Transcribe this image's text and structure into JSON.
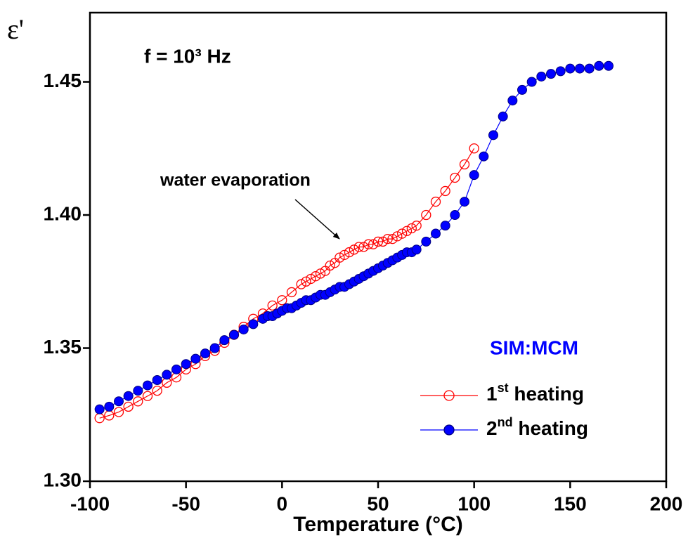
{
  "chart_data": {
    "type": "line",
    "ylabel": "ε'",
    "xlabel": "Temperature (°C)",
    "annotations": [
      "f = 10³ Hz",
      "water evaporation"
    ],
    "legend_title": "SIM:MCM",
    "xlim": [
      -100,
      200
    ],
    "xticks": [
      -100,
      -50,
      0,
      50,
      100,
      150,
      200
    ],
    "ylim": [
      1.3,
      1.476
    ],
    "yticks": [
      {
        "value": 1.3,
        "label": "1.30"
      },
      1.35,
      {
        "value": 1.4,
        "label": "1.40"
      },
      1.45
    ],
    "series": [
      {
        "name": "1st heating",
        "color": "#ff0000",
        "filled": false,
        "x": [
          -95,
          -90,
          -85,
          -80,
          -75,
          -70,
          -65,
          -60,
          -55,
          -50,
          -45,
          -40,
          -35,
          -30,
          -25,
          -20,
          -15,
          -10,
          -5,
          0,
          5,
          10,
          12.5,
          15,
          17.5,
          20,
          22.5,
          25,
          27.5,
          30,
          32.5,
          35,
          37.5,
          40,
          42.5,
          45,
          47.5,
          50,
          52.5,
          55,
          57.5,
          60,
          62.5,
          65,
          67.5,
          70,
          75,
          80,
          85,
          90,
          95,
          100
        ],
        "values": [
          1.3237,
          1.3247,
          1.326,
          1.328,
          1.33,
          1.332,
          1.334,
          1.337,
          1.339,
          1.342,
          1.344,
          1.347,
          1.349,
          1.352,
          1.355,
          1.358,
          1.361,
          1.363,
          1.366,
          1.368,
          1.371,
          1.374,
          1.375,
          1.376,
          1.377,
          1.378,
          1.379,
          1.381,
          1.382,
          1.384,
          1.385,
          1.386,
          1.387,
          1.388,
          1.388,
          1.389,
          1.389,
          1.39,
          1.39,
          1.391,
          1.391,
          1.392,
          1.393,
          1.394,
          1.395,
          1.396,
          1.4,
          1.405,
          1.409,
          1.414,
          1.419,
          1.425
        ]
      },
      {
        "name": "2nd heating",
        "color": "#0000ff",
        "filled": true,
        "x": [
          -95,
          -90,
          -85,
          -80,
          -75,
          -70,
          -65,
          -60,
          -55,
          -50,
          -45,
          -40,
          -35,
          -30,
          -25,
          -20,
          -15,
          -10,
          -7.5,
          -5,
          -2.5,
          0,
          2.5,
          5,
          7.5,
          10,
          12.5,
          15,
          17.5,
          20,
          22.5,
          25,
          27.5,
          30,
          32.5,
          35,
          37.5,
          40,
          42.5,
          45,
          47.5,
          50,
          52.5,
          55,
          57.5,
          60,
          62.5,
          65,
          67.5,
          70,
          75,
          80,
          85,
          90,
          95,
          100,
          105,
          110,
          115,
          120,
          125,
          130,
          135,
          140,
          145,
          150,
          155,
          160,
          165,
          170
        ],
        "values": [
          1.327,
          1.328,
          1.33,
          1.332,
          1.334,
          1.336,
          1.338,
          1.34,
          1.342,
          1.344,
          1.346,
          1.348,
          1.35,
          1.353,
          1.355,
          1.357,
          1.359,
          1.361,
          1.362,
          1.362,
          1.363,
          1.364,
          1.365,
          1.365,
          1.366,
          1.367,
          1.368,
          1.368,
          1.369,
          1.37,
          1.37,
          1.371,
          1.372,
          1.373,
          1.373,
          1.374,
          1.375,
          1.376,
          1.377,
          1.378,
          1.379,
          1.38,
          1.381,
          1.382,
          1.383,
          1.384,
          1.385,
          1.386,
          1.386,
          1.387,
          1.39,
          1.393,
          1.396,
          1.4,
          1.405,
          1.415,
          1.422,
          1.43,
          1.437,
          1.443,
          1.447,
          1.45,
          1.452,
          1.453,
          1.454,
          1.455,
          1.455,
          1.455,
          1.456,
          1.456
        ]
      }
    ]
  }
}
